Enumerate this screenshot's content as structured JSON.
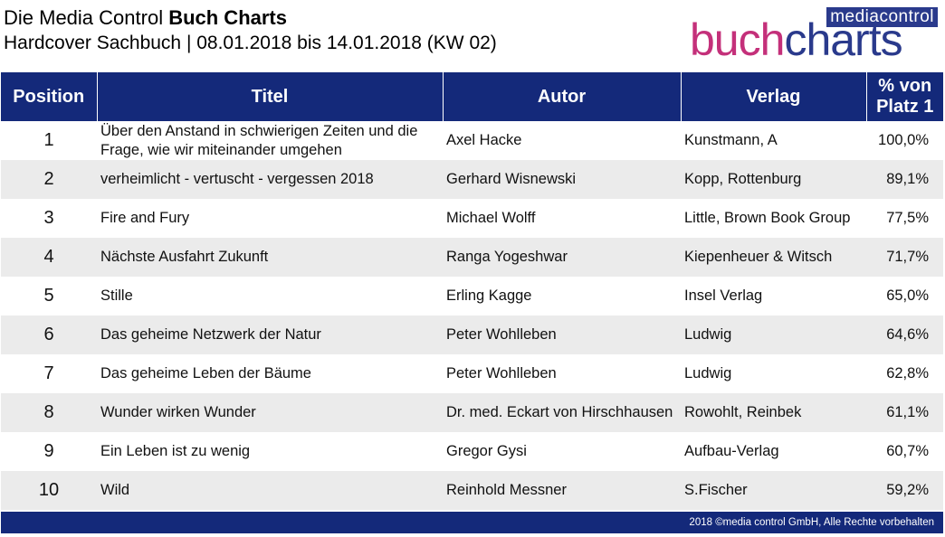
{
  "header": {
    "title_prefix": "Die Media Control ",
    "title_bold": "Buch Charts",
    "subtitle": "Hardcover Sachbuch | 08.01.2018 bis 14.01.2018 (KW 02)"
  },
  "logo": {
    "top": "mediacontrol",
    "part1": "buch",
    "part2": "charts",
    "colors": {
      "buch": "#c4307a",
      "charts": "#2a3a8c"
    }
  },
  "table": {
    "headers": {
      "position": "Position",
      "titel": "Titel",
      "autor": "Autor",
      "verlag": "Verlag",
      "pct": "% von Platz 1"
    },
    "rows": [
      {
        "pos": "1",
        "titel": "Über den Anstand in schwierigen Zeiten und die Frage, wie wir miteinander umgehen",
        "autor": "Axel Hacke",
        "verlag": "Kunstmann, A",
        "pct": "100,0%"
      },
      {
        "pos": "2",
        "titel": "verheimlicht - vertuscht - vergessen 2018",
        "autor": "Gerhard Wisnewski",
        "verlag": "Kopp, Rottenburg",
        "pct": "89,1%"
      },
      {
        "pos": "3",
        "titel": "Fire and Fury",
        "autor": "Michael Wolff",
        "verlag": "Little, Brown Book Group",
        "pct": "77,5%"
      },
      {
        "pos": "4",
        "titel": "Nächste Ausfahrt Zukunft",
        "autor": "Ranga Yogeshwar",
        "verlag": "Kiepenheuer & Witsch",
        "pct": "71,7%"
      },
      {
        "pos": "5",
        "titel": "Stille",
        "autor": "Erling Kagge",
        "verlag": "Insel Verlag",
        "pct": "65,0%"
      },
      {
        "pos": "6",
        "titel": "Das geheime Netzwerk der Natur",
        "autor": "Peter Wohlleben",
        "verlag": "Ludwig",
        "pct": "64,6%"
      },
      {
        "pos": "7",
        "titel": "Das geheime Leben der Bäume",
        "autor": "Peter Wohlleben",
        "verlag": "Ludwig",
        "pct": "62,8%"
      },
      {
        "pos": "8",
        "titel": "Wunder wirken Wunder",
        "autor": "Dr. med. Eckart von Hirschhausen",
        "verlag": "Rowohlt, Reinbek",
        "pct": "61,1%"
      },
      {
        "pos": "9",
        "titel": "Ein Leben ist zu wenig",
        "autor": "Gregor Gysi",
        "verlag": "Aufbau-Verlag",
        "pct": "60,7%"
      },
      {
        "pos": "10",
        "titel": "Wild",
        "autor": "Reinhold Messner",
        "verlag": "S.Fischer",
        "pct": "59,2%"
      }
    ]
  },
  "footer": {
    "text": "2018 ©media control GmbH, Alle Rechte vorbehalten"
  },
  "colors": {
    "header_bg": "#14297a",
    "row_alt": "#ebebeb"
  }
}
